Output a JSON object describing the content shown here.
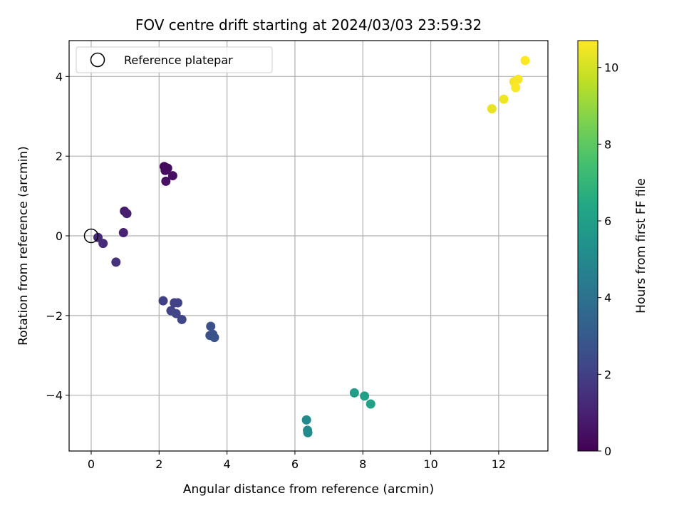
{
  "chart_data": {
    "type": "scatter",
    "title": "FOV centre drift starting at 2024/03/03 23:59:32",
    "xlabel": "Angular distance from reference (arcmin)",
    "ylabel": "Rotation from reference (arcmin)",
    "xlim": [
      -0.65,
      13.45
    ],
    "ylim": [
      -5.4,
      4.9
    ],
    "xticks": [
      0,
      2,
      4,
      6,
      8,
      10,
      12
    ],
    "yticks": [
      -4,
      -2,
      0,
      2,
      4
    ],
    "grid": true,
    "legend": {
      "placement": "top-left",
      "entries": [
        "Reference platepar"
      ]
    },
    "reference_point": {
      "x": 0,
      "y": 0
    },
    "colorbar": {
      "label": "Hours from first FF file",
      "colormap": "viridis",
      "range": [
        0,
        10.7
      ],
      "ticks": [
        0,
        2,
        4,
        6,
        8,
        10
      ]
    },
    "series": [
      {
        "x": [
          2.15,
          2.25,
          2.18,
          2.4,
          2.2,
          0.98,
          1.05,
          0.95,
          0.2,
          0.35,
          0.73,
          2.12,
          2.45,
          2.55,
          2.35,
          2.5,
          2.67,
          3.52,
          3.5,
          3.58,
          3.63,
          6.34,
          6.37,
          6.38,
          7.75,
          8.05,
          8.23,
          11.8,
          12.15,
          12.45,
          12.57,
          12.5,
          12.78
        ],
        "y": [
          1.74,
          1.7,
          1.64,
          1.51,
          1.37,
          0.62,
          0.56,
          0.08,
          -0.04,
          -0.19,
          -0.66,
          -1.63,
          -1.68,
          -1.68,
          -1.88,
          -1.95,
          -2.1,
          -2.27,
          -2.5,
          -2.47,
          -2.55,
          -4.62,
          -4.88,
          -4.94,
          -3.94,
          -4.02,
          -4.22,
          3.19,
          3.43,
          3.87,
          3.93,
          3.72,
          4.4
        ],
        "hours": [
          0.2,
          0.3,
          0.35,
          0.45,
          0.5,
          0.8,
          0.85,
          1.0,
          1.2,
          1.3,
          1.5,
          2.0,
          2.05,
          2.1,
          2.15,
          2.2,
          2.25,
          2.6,
          2.65,
          2.7,
          2.75,
          5.0,
          5.05,
          5.1,
          5.9,
          6.0,
          6.1,
          10.35,
          10.45,
          10.55,
          10.6,
          10.65,
          10.7
        ]
      }
    ]
  }
}
